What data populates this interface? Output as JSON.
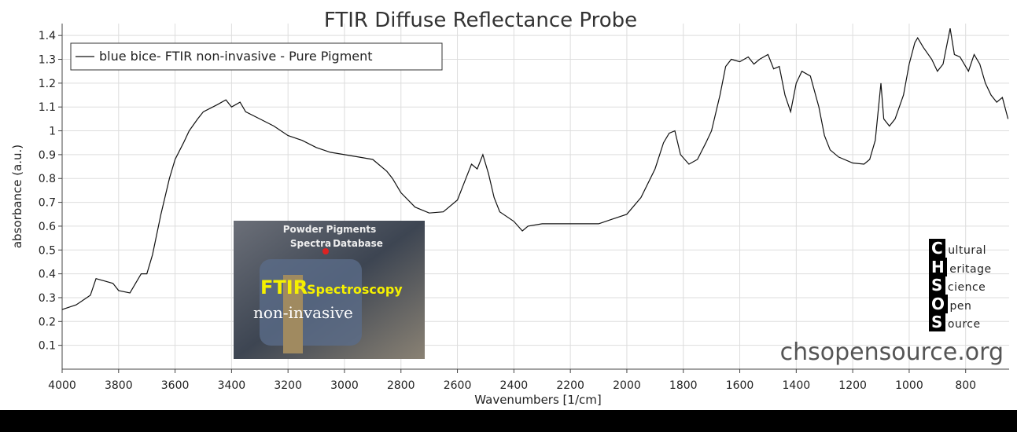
{
  "chart_data": {
    "type": "line",
    "title": "FTIR Diffuse Reflectance Probe",
    "x_label": "Wavenumbers [1/cm]",
    "y_label": "absorbance (a.u.)",
    "xlim": [
      4000,
      646
    ],
    "ylim": [
      0,
      1.45
    ],
    "xticks": [
      4000,
      3800,
      3600,
      3400,
      3200,
      3000,
      2800,
      2600,
      2400,
      2200,
      2000,
      1800,
      1600,
      1400,
      1200,
      1000,
      800
    ],
    "yticks": [
      0.1,
      0.2,
      0.3,
      0.4,
      0.5,
      0.6,
      0.7,
      0.8,
      0.9,
      1,
      1.1,
      1.2,
      1.3,
      1.4
    ],
    "grid": true,
    "legend": "upper left",
    "x": [
      4000,
      3950,
      3900,
      3880,
      3850,
      3820,
      3800,
      3760,
      3740,
      3720,
      3700,
      3680,
      3650,
      3620,
      3600,
      3570,
      3550,
      3520,
      3500,
      3450,
      3420,
      3400,
      3370,
      3350,
      3300,
      3250,
      3200,
      3150,
      3100,
      3050,
      3000,
      2950,
      2900,
      2850,
      2830,
      2800,
      2750,
      2700,
      2650,
      2600,
      2570,
      2550,
      2530,
      2510,
      2490,
      2470,
      2450,
      2400,
      2370,
      2350,
      2300,
      2200,
      2100,
      2050,
      2000,
      1950,
      1900,
      1870,
      1850,
      1830,
      1810,
      1780,
      1750,
      1720,
      1700,
      1670,
      1650,
      1630,
      1600,
      1570,
      1550,
      1530,
      1500,
      1480,
      1460,
      1440,
      1420,
      1400,
      1380,
      1350,
      1320,
      1300,
      1280,
      1250,
      1200,
      1160,
      1140,
      1120,
      1100,
      1090,
      1070,
      1050,
      1020,
      1000,
      980,
      970,
      950,
      920,
      900,
      880,
      860,
      855,
      840,
      820,
      790,
      770,
      750,
      730,
      710,
      690,
      670,
      650
    ],
    "series": [
      {
        "name": "blue bice- FTIR non-invasive - Pure Pigment",
        "color": "#111111",
        "values": [
          0.25,
          0.27,
          0.31,
          0.38,
          0.37,
          0.36,
          0.33,
          0.32,
          0.36,
          0.4,
          0.4,
          0.48,
          0.65,
          0.8,
          0.88,
          0.95,
          1.0,
          1.05,
          1.08,
          1.11,
          1.13,
          1.1,
          1.12,
          1.08,
          1.05,
          1.02,
          0.98,
          0.96,
          0.93,
          0.91,
          0.9,
          0.89,
          0.88,
          0.83,
          0.8,
          0.74,
          0.68,
          0.655,
          0.66,
          0.71,
          0.8,
          0.86,
          0.84,
          0.9,
          0.82,
          0.72,
          0.66,
          0.62,
          0.58,
          0.6,
          0.61,
          0.61,
          0.61,
          0.63,
          0.65,
          0.72,
          0.84,
          0.95,
          0.99,
          1.0,
          0.9,
          0.86,
          0.88,
          0.95,
          1.0,
          1.15,
          1.27,
          1.3,
          1.29,
          1.31,
          1.28,
          1.3,
          1.32,
          1.26,
          1.27,
          1.15,
          1.08,
          1.2,
          1.25,
          1.23,
          1.1,
          0.98,
          0.92,
          0.89,
          0.865,
          0.86,
          0.88,
          0.96,
          1.2,
          1.05,
          1.02,
          1.05,
          1.15,
          1.28,
          1.37,
          1.39,
          1.35,
          1.3,
          1.25,
          1.28,
          1.4,
          1.43,
          1.32,
          1.31,
          1.25,
          1.32,
          1.28,
          1.2,
          1.15,
          1.12,
          1.14,
          1.05
        ]
      }
    ],
    "watermark": "chsopensource.org",
    "logo": [
      "Cultural",
      "Heritage",
      "Science",
      "Open",
      "Source"
    ],
    "inset": {
      "lines": [
        "Powder Pigments",
        "Spectra",
        "Database"
      ],
      "heading": "FTIR",
      "subheading": "Spectroscopy",
      "caption": "non-invasive"
    }
  }
}
